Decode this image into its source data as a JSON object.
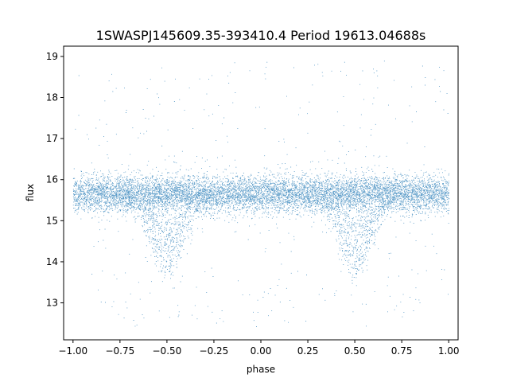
{
  "chart_data": {
    "type": "scatter",
    "title": "1SWASPJ145609.35-393410.4 Period 19613.04688s",
    "xlabel": "phase",
    "ylabel": "flux",
    "xlim": [
      -1.05,
      1.05
    ],
    "ylim": [
      12.1,
      19.25
    ],
    "xticks": [
      -1.0,
      -0.75,
      -0.5,
      -0.25,
      0.0,
      0.25,
      0.5,
      0.75,
      1.0
    ],
    "xtick_labels": [
      "−1.00",
      "−0.75",
      "−0.50",
      "−0.25",
      "0.00",
      "0.25",
      "0.50",
      "0.75",
      "1.00"
    ],
    "yticks": [
      13,
      14,
      15,
      16,
      17,
      18,
      19
    ],
    "ytick_labels": [
      "13",
      "14",
      "15",
      "16",
      "17",
      "18",
      "19"
    ],
    "grid": false,
    "marker_color": "#1f77b4",
    "points_x_range": [
      -1.0,
      1.0
    ],
    "baseline_flux": 15.65,
    "baseline_scatter": 0.22,
    "dip_centers": [
      -0.5,
      0.5
    ],
    "dip_min_flux": 13.9,
    "outlier_range": [
      12.4,
      18.9
    ]
  }
}
